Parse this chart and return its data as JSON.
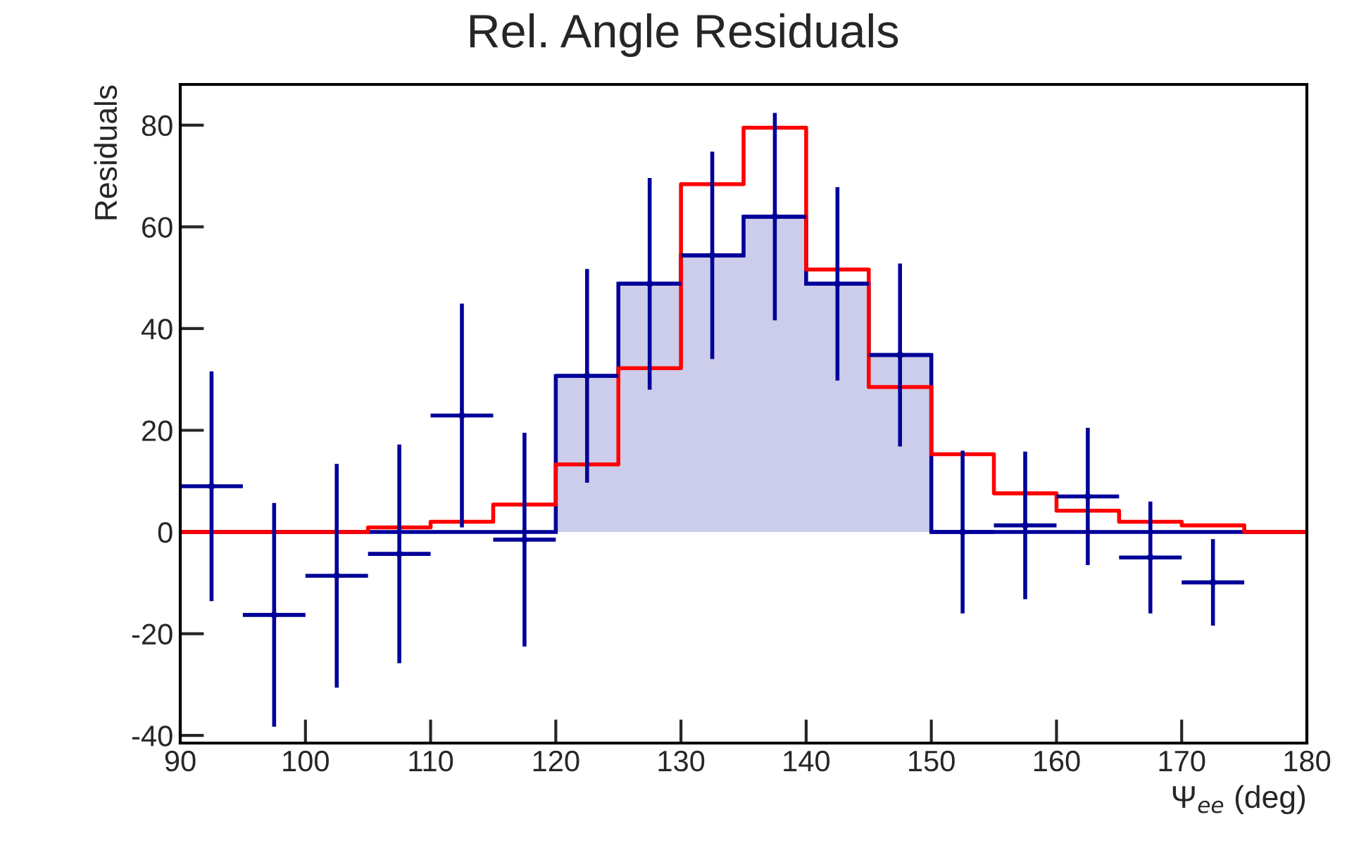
{
  "chart_data": {
    "type": "histogram",
    "title": "Rel. Angle Residuals",
    "xlabel": "Ψ$_{ee}$ (deg)",
    "ylabel": "Residuals",
    "bins": [
      90,
      95,
      100,
      105,
      110,
      115,
      120,
      125,
      130,
      135,
      140,
      145,
      150,
      155,
      160,
      165,
      170,
      175,
      180
    ],
    "series": [
      {
        "color": "#000099",
        "values": [
          0,
          0,
          0,
          0,
          0,
          0,
          30.7,
          48.8,
          54.4,
          62,
          48.8,
          34.8,
          0,
          0,
          0,
          0,
          0,
          0
        ]
      },
      {
        "type": "step",
        "color": "#ff0000",
        "x": [
          90,
          95,
          100,
          105,
          110,
          115,
          120,
          125,
          130,
          135,
          140,
          145,
          150,
          155,
          160,
          165,
          170,
          175,
          180
        ],
        "values": [
          0,
          0,
          0,
          0.9,
          2,
          5.4,
          13.3,
          32.2,
          68.4,
          79.5,
          51.6,
          28.5,
          15.3,
          7.6,
          4.2,
          2,
          1.3,
          0,
          0
        ]
      },
      {
        "type": "scatter",
        "color": "#000099",
        "marker": "circle",
        "x": [
          92.5,
          97.5,
          102.5,
          107.5,
          112.5,
          117.5,
          122.5,
          127.5,
          132.5,
          137.5,
          142.5,
          147.5,
          152.5,
          157.5,
          162.5,
          167.5,
          172.5
        ],
        "values": [
          9,
          -16.3,
          -8.6,
          -4.3,
          22.9,
          -1.5,
          30.7,
          48.8,
          54.4,
          62,
          48.8,
          34.8,
          0,
          1.3,
          7,
          -5,
          -9.9
        ],
        "errors": [
          22.6,
          22,
          22,
          21.5,
          22,
          21,
          21,
          20.8,
          20.4,
          20.4,
          19,
          18,
          16,
          14.5,
          13.5,
          11,
          8.5
        ],
        "xerrors": [
          2.5,
          2.5,
          2.5,
          2.5,
          2.5,
          2.5,
          2.5,
          2.5,
          2.5,
          2.5,
          2.5,
          2.5,
          2.5,
          2.5,
          2.5,
          2.5,
          2.5
        ]
      }
    ],
    "xlim": [
      90,
      180
    ],
    "xticks": [
      90,
      100,
      110,
      120,
      130,
      140,
      150,
      160,
      170,
      180
    ],
    "ylim": [
      -41.5,
      88
    ],
    "yticks": [
      -40,
      -20,
      0,
      20,
      40,
      60,
      80
    ],
    "grid": false,
    "legend": false
  }
}
